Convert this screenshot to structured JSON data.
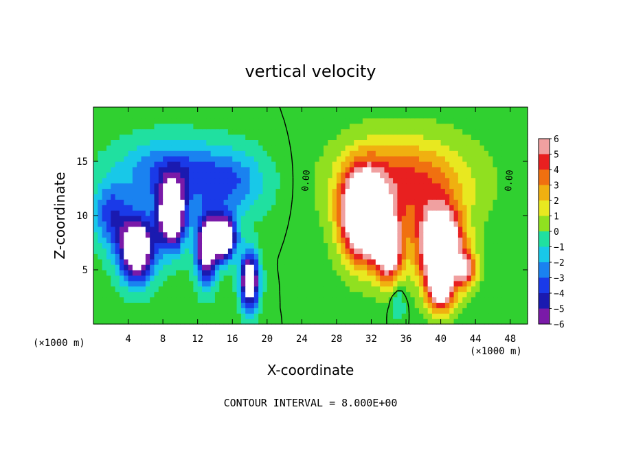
{
  "chart_data": {
    "type": "heatmap",
    "title": "vertical velocity",
    "xlabel": "X-coordinate",
    "ylabel": "Z-coordinate",
    "x_unit": "(×1000 m)",
    "xlim": [
      0,
      50
    ],
    "ylim": [
      0,
      20
    ],
    "x_ticks": [
      4,
      8,
      12,
      16,
      20,
      24,
      28,
      32,
      36,
      40,
      44,
      48
    ],
    "y_ticks": [
      5,
      10,
      15
    ],
    "colorbar": {
      "ticks": [
        6,
        5,
        4,
        3,
        2,
        1,
        0,
        -1,
        -2,
        -3,
        -4,
        -5,
        -6
      ],
      "range": [
        -6,
        6
      ],
      "colors": {
        "-6": "#7a1aa8",
        "-5": "#1a1ab0",
        "-4": "#1a3ae8",
        "-3": "#1a82f0",
        "-2": "#18c8e8",
        "-1": "#20e0a0",
        "0": "#30d030",
        "1": "#90e020",
        "2": "#e8e820",
        "3": "#f0b010",
        "4": "#f07010",
        "5": "#e82020",
        "6": "#f0a0a0"
      },
      "saturation_color": "#ffffff"
    },
    "contour_label": "0.00",
    "cells": [
      {
        "x": 5,
        "z": 7,
        "w": -10,
        "sx": 2,
        "sz": 3
      },
      {
        "x": 9,
        "z": 10,
        "w": -10,
        "sx": 1.6,
        "sz": 3
      },
      {
        "x": 13,
        "z": 7,
        "w": -9,
        "sx": 1.2,
        "sz": 3
      },
      {
        "x": 15,
        "z": 8,
        "w": -10,
        "sx": 1.4,
        "sz": 2
      },
      {
        "x": 18,
        "z": 4,
        "w": -10,
        "sx": 1,
        "sz": 2.5
      },
      {
        "x": 9,
        "z": 14,
        "w": -4,
        "sx": 6,
        "sz": 3
      },
      {
        "x": 16,
        "z": 13,
        "w": -3,
        "sx": 4,
        "sz": 3
      },
      {
        "x": 2,
        "z": 10,
        "w": -4,
        "sx": 2,
        "sz": 3
      },
      {
        "x": 31,
        "z": 10,
        "w": 12,
        "sx": 2.4,
        "sz": 4
      },
      {
        "x": 34,
        "z": 7,
        "w": 9,
        "sx": 1.6,
        "sz": 3
      },
      {
        "x": 40,
        "z": 7,
        "w": 12,
        "sx": 2.5,
        "sz": 3.5
      },
      {
        "x": 36,
        "z": 13,
        "w": 5,
        "sx": 7,
        "sz": 4
      },
      {
        "x": 40,
        "z": 3,
        "w": 6,
        "sx": 1.5,
        "sz": 2
      },
      {
        "x": 35,
        "z": 2,
        "w": -2,
        "sx": 0.8,
        "sz": 1.5
      },
      {
        "x": 43,
        "z": 5,
        "w": 5,
        "sx": 1.2,
        "sz": 1.5
      }
    ]
  },
  "footer": {
    "contour_interval": "CONTOUR INTERVAL = 8.000E+00"
  }
}
